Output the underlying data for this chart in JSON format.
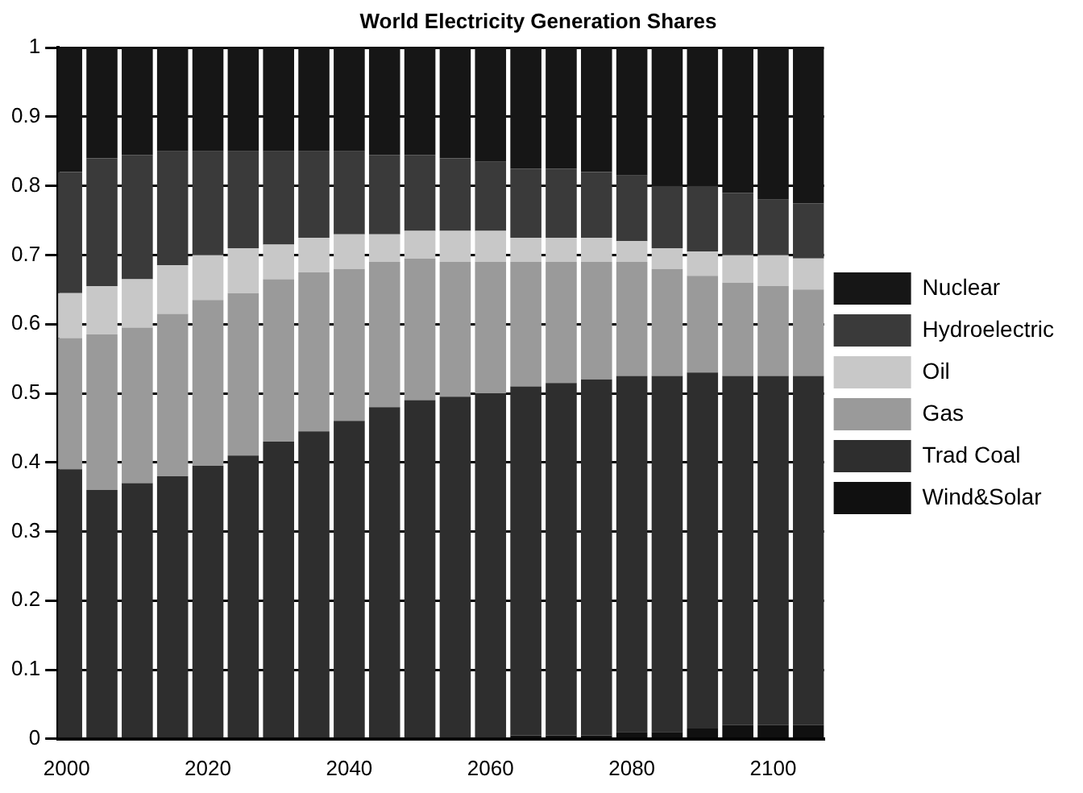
{
  "chart_data": {
    "type": "bar",
    "title": "World Electricity Generation Shares",
    "stacked": true,
    "x": [
      2000,
      2005,
      2010,
      2015,
      2020,
      2025,
      2030,
      2035,
      2040,
      2045,
      2050,
      2055,
      2060,
      2065,
      2070,
      2075,
      2080,
      2085,
      2090,
      2095,
      2100,
      2105
    ],
    "xlim": [
      1998.8,
      2107.2
    ],
    "xticks": [
      2000,
      2020,
      2040,
      2060,
      2080,
      2100
    ],
    "ylim": [
      0,
      1
    ],
    "yticks": [
      0,
      0.1,
      0.2,
      0.3,
      0.4,
      0.5,
      0.6,
      0.7,
      0.8,
      0.9,
      1
    ],
    "grid": "y",
    "legend": "right",
    "series": [
      {
        "name": "Wind&Solar",
        "color": "#101010",
        "values": [
          0,
          0,
          0,
          0,
          0,
          0,
          0,
          0,
          0,
          0,
          0,
          0,
          0,
          0.005,
          0.005,
          0.005,
          0.01,
          0.01,
          0.015,
          0.02,
          0.02,
          0.02
        ]
      },
      {
        "name": "Trad Coal",
        "color": "#2e2e2e",
        "values": [
          0.39,
          0.36,
          0.37,
          0.38,
          0.395,
          0.41,
          0.43,
          0.445,
          0.46,
          0.48,
          0.49,
          0.495,
          0.5,
          0.505,
          0.51,
          0.515,
          0.515,
          0.515,
          0.515,
          0.505,
          0.505,
          0.505
        ]
      },
      {
        "name": "Gas",
        "color": "#9a9a9a",
        "values": [
          0.19,
          0.225,
          0.225,
          0.235,
          0.24,
          0.235,
          0.235,
          0.23,
          0.22,
          0.21,
          0.205,
          0.195,
          0.19,
          0.18,
          0.175,
          0.17,
          0.165,
          0.155,
          0.14,
          0.135,
          0.13,
          0.125
        ]
      },
      {
        "name": "Oil",
        "color": "#c8c8c8",
        "values": [
          0.065,
          0.07,
          0.07,
          0.07,
          0.065,
          0.065,
          0.05,
          0.05,
          0.05,
          0.04,
          0.04,
          0.045,
          0.045,
          0.035,
          0.035,
          0.035,
          0.03,
          0.03,
          0.035,
          0.04,
          0.045,
          0.045
        ]
      },
      {
        "name": "Hydroelectric",
        "color": "#3a3a3a",
        "values": [
          0.175,
          0.185,
          0.18,
          0.165,
          0.15,
          0.14,
          0.135,
          0.125,
          0.12,
          0.115,
          0.11,
          0.105,
          0.1,
          0.1,
          0.1,
          0.095,
          0.095,
          0.09,
          0.095,
          0.09,
          0.08,
          0.08
        ]
      },
      {
        "name": "Nuclear",
        "color": "#161616",
        "values": [
          0.18,
          0.16,
          0.155,
          0.15,
          0.15,
          0.15,
          0.15,
          0.15,
          0.15,
          0.155,
          0.155,
          0.16,
          0.165,
          0.175,
          0.175,
          0.18,
          0.185,
          0.2,
          0.2,
          0.21,
          0.22,
          0.225
        ]
      }
    ]
  }
}
